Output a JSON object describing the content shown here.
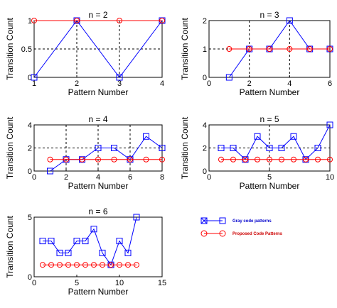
{
  "colors": {
    "gray": "#0000ff",
    "proposed": "#ff0000"
  },
  "legend": {
    "gray_label": "Gray code patterns",
    "proposed_label": "Proposed Code Patterns"
  },
  "chart_data": [
    {
      "type": "line",
      "title": "n = 2",
      "xlabel": "Pattern Number",
      "ylabel": "Transition Count",
      "xlim": [
        1,
        4
      ],
      "ylim": [
        0,
        1
      ],
      "xticks": [
        1,
        2,
        3,
        4
      ],
      "xtick_labels": [
        "1",
        "2",
        "3",
        "4"
      ],
      "yticks": [
        0,
        0.5,
        1
      ],
      "ytick_labels": [
        "0",
        "0.5",
        "1"
      ],
      "grid": true,
      "series": [
        {
          "key": "gray",
          "name": "Gray code patterns",
          "marker": "square-x",
          "x": [
            1,
            2,
            3,
            4
          ],
          "y": [
            0,
            1,
            0,
            1
          ]
        },
        {
          "key": "proposed",
          "name": "Proposed Code Patterns",
          "marker": "circle",
          "x": [
            1,
            2,
            3,
            4
          ],
          "y": [
            1,
            1,
            1,
            1
          ]
        }
      ]
    },
    {
      "type": "line",
      "title": "n = 3",
      "xlabel": "Pattern Number",
      "ylabel": "Transition Count",
      "xlim": [
        0,
        6
      ],
      "ylim": [
        0,
        2
      ],
      "xticks": [
        0,
        2,
        4,
        6
      ],
      "xtick_labels": [
        "0",
        "2",
        "4",
        "6"
      ],
      "yticks": [
        0,
        1,
        2
      ],
      "ytick_labels": [
        "0",
        "1",
        "2"
      ],
      "grid": true,
      "series": [
        {
          "key": "gray",
          "name": "Gray code patterns",
          "marker": "square-x",
          "x": [
            1,
            2,
            3,
            4,
            5,
            6
          ],
          "y": [
            0,
            1,
            1,
            2,
            1,
            1
          ]
        },
        {
          "key": "proposed",
          "name": "Proposed Code Patterns",
          "marker": "circle",
          "x": [
            1,
            2,
            3,
            4,
            5,
            6
          ],
          "y": [
            1,
            1,
            1,
            1,
            1,
            1
          ]
        }
      ]
    },
    {
      "type": "line",
      "title": "n = 4",
      "xlabel": "Pattern Number",
      "ylabel": "Transition Count",
      "xlim": [
        0,
        8
      ],
      "ylim": [
        0,
        4
      ],
      "xticks": [
        0,
        2,
        4,
        6,
        8
      ],
      "xtick_labels": [
        "0",
        "2",
        "4",
        "6",
        "8"
      ],
      "yticks": [
        0,
        2,
        4
      ],
      "ytick_labels": [
        "0",
        "2",
        "4"
      ],
      "grid": true,
      "series": [
        {
          "key": "gray",
          "name": "Gray code patterns",
          "marker": "square-x",
          "x": [
            1,
            2,
            3,
            4,
            5,
            6,
            7,
            8
          ],
          "y": [
            0,
            1,
            1,
            2,
            2,
            1,
            3,
            2
          ]
        },
        {
          "key": "proposed",
          "name": "Proposed Code Patterns",
          "marker": "circle",
          "x": [
            1,
            2,
            3,
            4,
            5,
            6,
            7,
            8
          ],
          "y": [
            1,
            1,
            1,
            1,
            1,
            1,
            1,
            1
          ]
        }
      ]
    },
    {
      "type": "line",
      "title": "n = 5",
      "xlabel": "Pattern Number",
      "ylabel": "Transition Count",
      "xlim": [
        0,
        10
      ],
      "ylim": [
        0,
        4
      ],
      "xticks": [
        0,
        5,
        10
      ],
      "xtick_labels": [
        "0",
        "5",
        "10"
      ],
      "yticks": [
        0,
        2,
        4
      ],
      "ytick_labels": [
        "0",
        "2",
        "4"
      ],
      "grid": true,
      "series": [
        {
          "key": "gray",
          "name": "Gray code patterns",
          "marker": "square-x",
          "x": [
            1,
            2,
            3,
            4,
            5,
            6,
            7,
            8,
            9,
            10
          ],
          "y": [
            2,
            2,
            1,
            3,
            2,
            2,
            3,
            1,
            2,
            4
          ]
        },
        {
          "key": "proposed",
          "name": "Proposed Code Patterns",
          "marker": "circle",
          "x": [
            1,
            2,
            3,
            4,
            5,
            6,
            7,
            8,
            9,
            10
          ],
          "y": [
            1,
            1,
            1,
            1,
            1,
            1,
            1,
            1,
            1,
            1
          ]
        }
      ]
    },
    {
      "type": "line",
      "title": "n = 6",
      "xlabel": "Pattern Number",
      "ylabel": "Transition Count",
      "xlim": [
        0,
        15
      ],
      "ylim": [
        0,
        5
      ],
      "xticks": [
        0,
        5,
        10,
        15
      ],
      "xtick_labels": [
        "0",
        "5",
        "10",
        "15"
      ],
      "yticks": [
        0,
        5
      ],
      "ytick_labels": [
        "0",
        "5"
      ],
      "grid": false,
      "series": [
        {
          "key": "gray",
          "name": "Gray code patterns",
          "marker": "square-x",
          "x": [
            1,
            2,
            3,
            4,
            5,
            6,
            7,
            8,
            9,
            10,
            11,
            12
          ],
          "y": [
            3,
            3,
            2,
            2,
            3,
            3,
            4,
            2,
            1,
            3,
            2,
            5
          ]
        },
        {
          "key": "proposed",
          "name": "Proposed Code Patterns",
          "marker": "circle",
          "x": [
            1,
            2,
            3,
            4,
            5,
            6,
            7,
            8,
            9,
            10,
            11,
            12
          ],
          "y": [
            1,
            1,
            1,
            1,
            1,
            1,
            1,
            1,
            1,
            1,
            1,
            1
          ]
        }
      ]
    }
  ]
}
